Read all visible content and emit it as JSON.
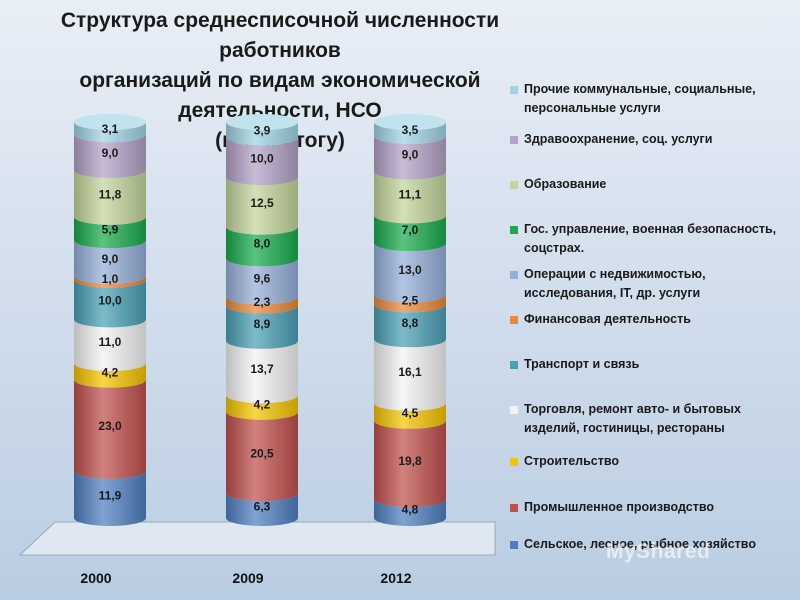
{
  "chart_data": {
    "type": "bar",
    "stacked": true,
    "title_lines": [
      "Структура среднесписочной численности работников",
      "организаций по видам экономической деятельности, НСО",
      "(в % к итогу)"
    ],
    "categories": [
      "2000",
      "2009",
      "2012"
    ],
    "series": [
      {
        "name": "Сельское, лесное, рыбное хозяйство",
        "color": "#4f7fc0",
        "values": [
          11.9,
          6.3,
          4.8
        ],
        "labels": [
          "11,9",
          "6,3",
          "4,8"
        ]
      },
      {
        "name": "Промышленное производство",
        "color": "#c0504d",
        "values": [
          23.0,
          20.5,
          19.8
        ],
        "labels": [
          "23,0",
          "20,5",
          "19,8"
        ]
      },
      {
        "name": "Строительство",
        "color": "#f5c400",
        "values": [
          4.2,
          4.2,
          4.5
        ],
        "labels": [
          "4,2",
          "4,2",
          "4,5"
        ]
      },
      {
        "name": "Торговля, ремонт авто- и бытовых изделий, гостиницы, рестораны",
        "color": "#f2f2f2",
        "values": [
          11.0,
          13.7,
          16.1
        ],
        "labels": [
          "11,0",
          "13,7",
          "16,1"
        ]
      },
      {
        "name": "Транспорт и связь",
        "color": "#4aa0b5",
        "values": [
          10.0,
          8.9,
          8.8
        ],
        "labels": [
          "10,0",
          "8,9",
          "8,8"
        ]
      },
      {
        "name": "Финансовая деятельность",
        "color": "#e8893a",
        "values": [
          1.0,
          2.3,
          2.5
        ],
        "labels": [
          "1,0",
          "2,3",
          "2,5"
        ]
      },
      {
        "name": "Операции с недвижимостью, исследования, IT, др. услуги",
        "color": "#95afd8",
        "values": [
          9.0,
          9.6,
          13.0
        ],
        "labels": [
          "9,0",
          "9,6",
          "13,0"
        ]
      },
      {
        "name": "Гос. управление, военная безопасность, соцстрах.",
        "color": "#1aab4e",
        "values": [
          5.9,
          8.0,
          7.0
        ],
        "labels": [
          "5,9",
          "8,0",
          "7,0"
        ]
      },
      {
        "name": "Образование",
        "color": "#c3d69b",
        "values": [
          11.8,
          12.5,
          11.1
        ],
        "labels": [
          "11,8",
          "12,5",
          "11,1"
        ]
      },
      {
        "name": "Здравоохранение, соц. услуги",
        "color": "#b3a2c7",
        "values": [
          9.0,
          10.0,
          9.0
        ],
        "labels": [
          "9,0",
          "10,0",
          "9,0"
        ]
      },
      {
        "name": "Прочие коммунальные, социальные, персональные услуги",
        "color": "#9fd4e3",
        "values": [
          3.1,
          3.9,
          3.5
        ],
        "labels": [
          "3,1",
          "3,9",
          "3,5"
        ]
      }
    ],
    "legend_position": "right",
    "grid": false
  },
  "watermark": "MyShared"
}
